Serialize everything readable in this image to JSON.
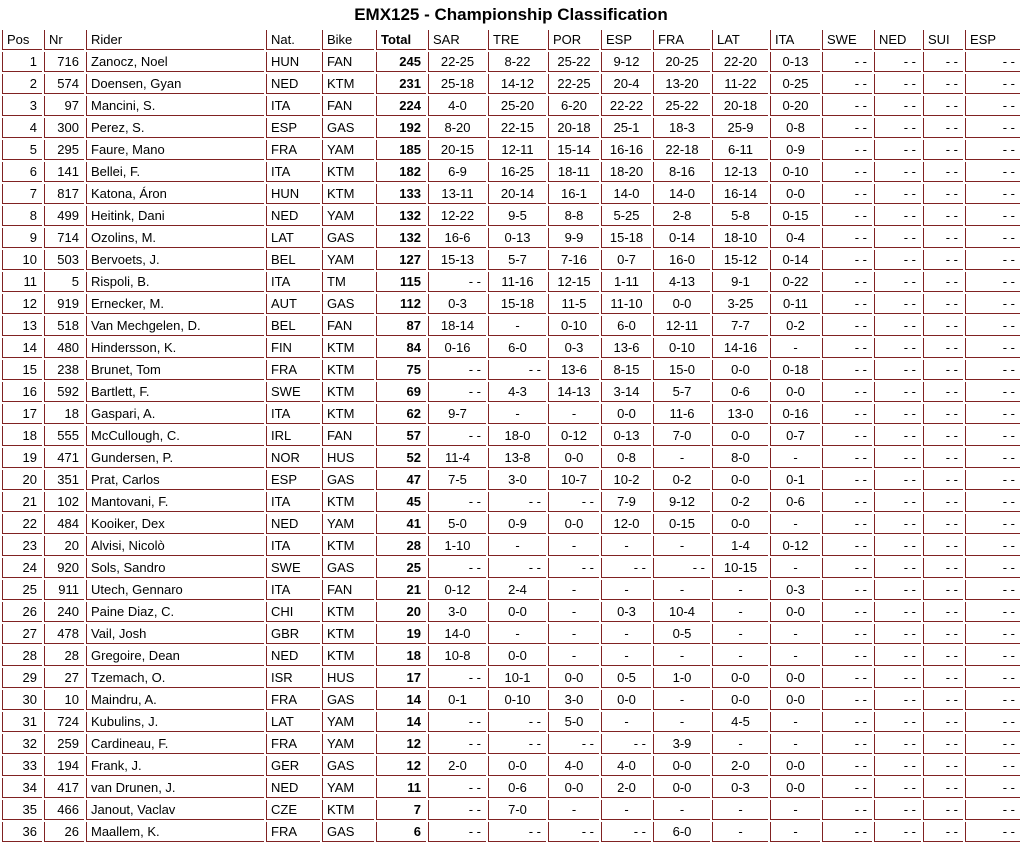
{
  "title": "EMX125 - Championship Classification",
  "colors": {
    "table_border": "#802222",
    "text": "#000000",
    "background": "#ffffff"
  },
  "table": {
    "headers": [
      "Pos",
      "Nr",
      "Rider",
      "Nat.",
      "Bike",
      "Total",
      "SAR",
      "TRE",
      "POR",
      "ESP",
      "FRA",
      "LAT",
      "ITA",
      "SWE",
      "NED",
      "SUI",
      "ESP"
    ],
    "no_score_placeholder": "- -",
    "rows": [
      {
        "pos": "1",
        "nr": "716",
        "rider": "Zanocz, Noel",
        "nat": "HUN",
        "bike": "FAN",
        "total": "245",
        "gp": [
          "22-25",
          "8-22",
          "25-22",
          "9-12",
          "20-25",
          "22-20",
          "0-13",
          "- -",
          "- -",
          "- -",
          "- -"
        ]
      },
      {
        "pos": "2",
        "nr": "574",
        "rider": "Doensen, Gyan",
        "nat": "NED",
        "bike": "KTM",
        "total": "231",
        "gp": [
          "25-18",
          "14-12",
          "22-25",
          "20-4",
          "13-20",
          "11-22",
          "0-25",
          "- -",
          "- -",
          "- -",
          "- -"
        ]
      },
      {
        "pos": "3",
        "nr": "97",
        "rider": "Mancini, S.",
        "nat": "ITA",
        "bike": "FAN",
        "total": "224",
        "gp": [
          "4-0",
          "25-20",
          "6-20",
          "22-22",
          "25-22",
          "20-18",
          "0-20",
          "- -",
          "- -",
          "- -",
          "- -"
        ]
      },
      {
        "pos": "4",
        "nr": "300",
        "rider": "Perez, S.",
        "nat": "ESP",
        "bike": "GAS",
        "total": "192",
        "gp": [
          "8-20",
          "22-15",
          "20-18",
          "25-1",
          "18-3",
          "25-9",
          "0-8",
          "- -",
          "- -",
          "- -",
          "- -"
        ]
      },
      {
        "pos": "5",
        "nr": "295",
        "rider": "Faure, Mano",
        "nat": "FRA",
        "bike": "YAM",
        "total": "185",
        "gp": [
          "20-15",
          "12-11",
          "15-14",
          "16-16",
          "22-18",
          "6-11",
          "0-9",
          "- -",
          "- -",
          "- -",
          "- -"
        ]
      },
      {
        "pos": "6",
        "nr": "141",
        "rider": "Bellei, F.",
        "nat": "ITA",
        "bike": "KTM",
        "total": "182",
        "gp": [
          "6-9",
          "16-25",
          "18-11",
          "18-20",
          "8-16",
          "12-13",
          "0-10",
          "- -",
          "- -",
          "- -",
          "- -"
        ]
      },
      {
        "pos": "7",
        "nr": "817",
        "rider": "Katona, Áron",
        "nat": "HUN",
        "bike": "KTM",
        "total": "133",
        "gp": [
          "13-11",
          "20-14",
          "16-1",
          "14-0",
          "14-0",
          "16-14",
          "0-0",
          "- -",
          "- -",
          "- -",
          "- -"
        ]
      },
      {
        "pos": "8",
        "nr": "499",
        "rider": "Heitink, Dani",
        "nat": "NED",
        "bike": "YAM",
        "total": "132",
        "gp": [
          "12-22",
          "9-5",
          "8-8",
          "5-25",
          "2-8",
          "5-8",
          "0-15",
          "- -",
          "- -",
          "- -",
          "- -"
        ]
      },
      {
        "pos": "9",
        "nr": "714",
        "rider": "Ozolins, M.",
        "nat": "LAT",
        "bike": "GAS",
        "total": "132",
        "gp": [
          "16-6",
          "0-13",
          "9-9",
          "15-18",
          "0-14",
          "18-10",
          "0-4",
          "- -",
          "- -",
          "- -",
          "- -"
        ]
      },
      {
        "pos": "10",
        "nr": "503",
        "rider": "Bervoets, J.",
        "nat": "BEL",
        "bike": "YAM",
        "total": "127",
        "gp": [
          "15-13",
          "5-7",
          "7-16",
          "0-7",
          "16-0",
          "15-12",
          "0-14",
          "- -",
          "- -",
          "- -",
          "- -"
        ]
      },
      {
        "pos": "11",
        "nr": "5",
        "rider": "Rispoli, B.",
        "nat": "ITA",
        "bike": "TM",
        "total": "115",
        "gp": [
          "- -",
          "11-16",
          "12-15",
          "1-11",
          "4-13",
          "9-1",
          "0-22",
          "- -",
          "- -",
          "- -",
          "- -"
        ]
      },
      {
        "pos": "12",
        "nr": "919",
        "rider": "Ernecker, M.",
        "nat": "AUT",
        "bike": "GAS",
        "total": "112",
        "gp": [
          "0-3",
          "15-18",
          "11-5",
          "11-10",
          "0-0",
          "3-25",
          "0-11",
          "- -",
          "- -",
          "- -",
          "- -"
        ]
      },
      {
        "pos": "13",
        "nr": "518",
        "rider": "Van Mechgelen, D.",
        "nat": "BEL",
        "bike": "FAN",
        "total": "87",
        "gp": [
          "18-14",
          "-",
          "0-10",
          "6-0",
          "12-11",
          "7-7",
          "0-2",
          "- -",
          "- -",
          "- -",
          "- -"
        ]
      },
      {
        "pos": "14",
        "nr": "480",
        "rider": "Hindersson, K.",
        "nat": "FIN",
        "bike": "KTM",
        "total": "84",
        "gp": [
          "0-16",
          "6-0",
          "0-3",
          "13-6",
          "0-10",
          "14-16",
          "-",
          "- -",
          "- -",
          "- -",
          "- -"
        ]
      },
      {
        "pos": "15",
        "nr": "238",
        "rider": "Brunet, Tom",
        "nat": "FRA",
        "bike": "KTM",
        "total": "75",
        "gp": [
          "- -",
          "- -",
          "13-6",
          "8-15",
          "15-0",
          "0-0",
          "0-18",
          "- -",
          "- -",
          "- -",
          "- -"
        ]
      },
      {
        "pos": "16",
        "nr": "592",
        "rider": "Bartlett, F.",
        "nat": "SWE",
        "bike": "KTM",
        "total": "69",
        "gp": [
          "- -",
          "4-3",
          "14-13",
          "3-14",
          "5-7",
          "0-6",
          "0-0",
          "- -",
          "- -",
          "- -",
          "- -"
        ]
      },
      {
        "pos": "17",
        "nr": "18",
        "rider": "Gaspari, A.",
        "nat": "ITA",
        "bike": "KTM",
        "total": "62",
        "gp": [
          "9-7",
          "-",
          "-",
          "0-0",
          "11-6",
          "13-0",
          "0-16",
          "- -",
          "- -",
          "- -",
          "- -"
        ]
      },
      {
        "pos": "18",
        "nr": "555",
        "rider": "McCullough, C.",
        "nat": "IRL",
        "bike": "FAN",
        "total": "57",
        "gp": [
          "- -",
          "18-0",
          "0-12",
          "0-13",
          "7-0",
          "0-0",
          "0-7",
          "- -",
          "- -",
          "- -",
          "- -"
        ]
      },
      {
        "pos": "19",
        "nr": "471",
        "rider": "Gundersen, P.",
        "nat": "NOR",
        "bike": "HUS",
        "total": "52",
        "gp": [
          "11-4",
          "13-8",
          "0-0",
          "0-8",
          "-",
          "8-0",
          "-",
          "- -",
          "- -",
          "- -",
          "- -"
        ]
      },
      {
        "pos": "20",
        "nr": "351",
        "rider": "Prat, Carlos",
        "nat": "ESP",
        "bike": "GAS",
        "total": "47",
        "gp": [
          "7-5",
          "3-0",
          "10-7",
          "10-2",
          "0-2",
          "0-0",
          "0-1",
          "- -",
          "- -",
          "- -",
          "- -"
        ]
      },
      {
        "pos": "21",
        "nr": "102",
        "rider": "Mantovani, F.",
        "nat": "ITA",
        "bike": "KTM",
        "total": "45",
        "gp": [
          "- -",
          "- -",
          "- -",
          "7-9",
          "9-12",
          "0-2",
          "0-6",
          "- -",
          "- -",
          "- -",
          "- -"
        ]
      },
      {
        "pos": "22",
        "nr": "484",
        "rider": "Kooiker, Dex",
        "nat": "NED",
        "bike": "YAM",
        "total": "41",
        "gp": [
          "5-0",
          "0-9",
          "0-0",
          "12-0",
          "0-15",
          "0-0",
          "-",
          "- -",
          "- -",
          "- -",
          "- -"
        ]
      },
      {
        "pos": "23",
        "nr": "20",
        "rider": "Alvisi, Nicolò",
        "nat": "ITA",
        "bike": "KTM",
        "total": "28",
        "gp": [
          "1-10",
          "-",
          "-",
          "-",
          "-",
          "1-4",
          "0-12",
          "- -",
          "- -",
          "- -",
          "- -"
        ]
      },
      {
        "pos": "24",
        "nr": "920",
        "rider": "Sols, Sandro",
        "nat": "SWE",
        "bike": "GAS",
        "total": "25",
        "gp": [
          "- -",
          "- -",
          "- -",
          "- -",
          "- -",
          "10-15",
          "-",
          "- -",
          "- -",
          "- -",
          "- -"
        ]
      },
      {
        "pos": "25",
        "nr": "911",
        "rider": "Utech, Gennaro",
        "nat": "ITA",
        "bike": "FAN",
        "total": "21",
        "gp": [
          "0-12",
          "2-4",
          "-",
          "-",
          "-",
          "-",
          "0-3",
          "- -",
          "- -",
          "- -",
          "- -"
        ]
      },
      {
        "pos": "26",
        "nr": "240",
        "rider": "Paine Diaz, C.",
        "nat": "CHI",
        "bike": "KTM",
        "total": "20",
        "gp": [
          "3-0",
          "0-0",
          "-",
          "0-3",
          "10-4",
          "-",
          "0-0",
          "- -",
          "- -",
          "- -",
          "- -"
        ]
      },
      {
        "pos": "27",
        "nr": "478",
        "rider": "Vail, Josh",
        "nat": "GBR",
        "bike": "KTM",
        "total": "19",
        "gp": [
          "14-0",
          "-",
          "-",
          "-",
          "0-5",
          "-",
          "-",
          "- -",
          "- -",
          "- -",
          "- -"
        ]
      },
      {
        "pos": "28",
        "nr": "28",
        "rider": "Gregoire, Dean",
        "nat": "NED",
        "bike": "KTM",
        "total": "18",
        "gp": [
          "10-8",
          "0-0",
          "-",
          "-",
          "-",
          "-",
          "-",
          "- -",
          "- -",
          "- -",
          "- -"
        ]
      },
      {
        "pos": "29",
        "nr": "27",
        "rider": "Tzemach, O.",
        "nat": "ISR",
        "bike": "HUS",
        "total": "17",
        "gp": [
          "- -",
          "10-1",
          "0-0",
          "0-5",
          "1-0",
          "0-0",
          "0-0",
          "- -",
          "- -",
          "- -",
          "- -"
        ]
      },
      {
        "pos": "30",
        "nr": "10",
        "rider": "Maindru, A.",
        "nat": "FRA",
        "bike": "GAS",
        "total": "14",
        "gp": [
          "0-1",
          "0-10",
          "3-0",
          "0-0",
          "-",
          "0-0",
          "0-0",
          "- -",
          "- -",
          "- -",
          "- -"
        ]
      },
      {
        "pos": "31",
        "nr": "724",
        "rider": "Kubulins, J.",
        "nat": "LAT",
        "bike": "YAM",
        "total": "14",
        "gp": [
          "- -",
          "- -",
          "5-0",
          "-",
          "-",
          "4-5",
          "-",
          "- -",
          "- -",
          "- -",
          "- -"
        ]
      },
      {
        "pos": "32",
        "nr": "259",
        "rider": "Cardineau, F.",
        "nat": "FRA",
        "bike": "YAM",
        "total": "12",
        "gp": [
          "- -",
          "- -",
          "- -",
          "- -",
          "3-9",
          "-",
          "-",
          "- -",
          "- -",
          "- -",
          "- -"
        ]
      },
      {
        "pos": "33",
        "nr": "194",
        "rider": "Frank, J.",
        "nat": "GER",
        "bike": "GAS",
        "total": "12",
        "gp": [
          "2-0",
          "0-0",
          "4-0",
          "4-0",
          "0-0",
          "2-0",
          "0-0",
          "- -",
          "- -",
          "- -",
          "- -"
        ]
      },
      {
        "pos": "34",
        "nr": "417",
        "rider": "van Drunen, J.",
        "nat": "NED",
        "bike": "YAM",
        "total": "11",
        "gp": [
          "- -",
          "0-6",
          "0-0",
          "2-0",
          "0-0",
          "0-3",
          "0-0",
          "- -",
          "- -",
          "- -",
          "- -"
        ]
      },
      {
        "pos": "35",
        "nr": "466",
        "rider": "Janout, Vaclav",
        "nat": "CZE",
        "bike": "KTM",
        "total": "7",
        "gp": [
          "- -",
          "7-0",
          "-",
          "-",
          "-",
          "-",
          "-",
          "- -",
          "- -",
          "- -",
          "- -"
        ]
      },
      {
        "pos": "36",
        "nr": "26",
        "rider": "Maallem, K.",
        "nat": "FRA",
        "bike": "GAS",
        "total": "6",
        "gp": [
          "- -",
          "- -",
          "- -",
          "- -",
          "6-0",
          "-",
          "-",
          "- -",
          "- -",
          "- -",
          "- -"
        ]
      }
    ]
  }
}
